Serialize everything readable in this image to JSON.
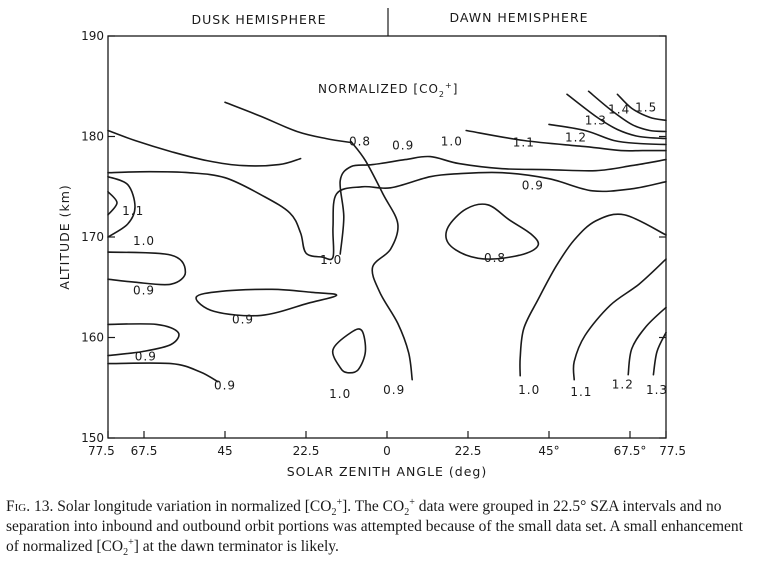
{
  "chart_data": {
    "type": "contour",
    "panel_left_title": "DUSK HEMISPHERE",
    "panel_right_title": "DAWN HEMISPHERE",
    "plot_title": "NORMALIZED [CO",
    "plot_title_sub": "2",
    "plot_title_sup": "+",
    "plot_title_end": "]",
    "xlabel": "SOLAR ZENITH ANGLE (deg)",
    "ylabel": "ALTITUDE (km)",
    "xlim": [
      -77.5,
      77.5
    ],
    "ylim": [
      150,
      190
    ],
    "x_ticks": [
      {
        "value": -77.5,
        "label": "77.5"
      },
      {
        "value": -67.5,
        "label": "67.5"
      },
      {
        "value": -45,
        "label": "45"
      },
      {
        "value": -22.5,
        "label": "22.5"
      },
      {
        "value": 0,
        "label": "0"
      },
      {
        "value": 22.5,
        "label": "22.5"
      },
      {
        "value": 45,
        "label": "45°"
      },
      {
        "value": 67.5,
        "label": "67.5°"
      },
      {
        "value": 77.5,
        "label": "77.5"
      }
    ],
    "y_ticks": [
      {
        "value": 150,
        "label": "150"
      },
      {
        "value": 160,
        "label": "160"
      },
      {
        "value": 170,
        "label": "170"
      },
      {
        "value": 180,
        "label": "180"
      },
      {
        "value": 190,
        "label": "190"
      }
    ],
    "contours": [
      {
        "level": "0.8",
        "closed": false,
        "points": [
          [
            -77.5,
            180.6
          ],
          [
            -70,
            179.6
          ],
          [
            -60,
            178.5
          ],
          [
            -50,
            177.6
          ],
          [
            -40,
            177.1
          ],
          [
            -30,
            177.2
          ],
          [
            -24,
            177.8
          ]
        ]
      },
      {
        "level": "0.8",
        "closed": false,
        "points": [
          [
            -45,
            183.4
          ],
          [
            -35,
            182.0
          ],
          [
            -25,
            180.5
          ],
          [
            -17,
            179.8
          ],
          [
            -10,
            179.4
          ]
        ]
      },
      {
        "level": "0.9",
        "closed": false,
        "points": [
          [
            -77.5,
            176.4
          ],
          [
            -66,
            176.5
          ],
          [
            -55,
            176.4
          ],
          [
            -45,
            175.9
          ],
          [
            -35,
            174.2
          ],
          [
            -27,
            172.4
          ],
          [
            -24,
            170.4
          ],
          [
            -22.5,
            168.4
          ],
          [
            -18,
            168.0
          ],
          [
            -15,
            168.0
          ],
          [
            -15,
            171.0
          ],
          [
            -14,
            174.3
          ],
          [
            -7,
            175.0
          ],
          [
            1,
            174.9
          ],
          [
            12,
            176.0
          ],
          [
            20,
            176.3
          ],
          [
            32,
            176.4
          ],
          [
            45,
            175.8
          ],
          [
            57,
            174.6
          ],
          [
            68,
            174.8
          ],
          [
            77.5,
            175.5
          ]
        ]
      },
      {
        "level": "1.0",
        "closed": false,
        "points": [
          [
            -13,
            168.3
          ],
          [
            -12,
            172.0
          ],
          [
            -13,
            175.6
          ],
          [
            -10,
            177.0
          ],
          [
            -4,
            177.2
          ],
          [
            5,
            177.7
          ],
          [
            12,
            178.0
          ],
          [
            20,
            177.3
          ],
          [
            32,
            176.8
          ],
          [
            45,
            176.7
          ],
          [
            58,
            176.6
          ],
          [
            68,
            177.1
          ],
          [
            77.5,
            177.7
          ]
        ]
      },
      {
        "level": "1.0",
        "closed": false,
        "points": [
          [
            -77.5,
            170.0
          ],
          [
            -72,
            171.3
          ],
          [
            -70,
            173.0
          ],
          [
            -72,
            175.2
          ],
          [
            -77.5,
            176.0
          ]
        ]
      },
      {
        "level": "1.1",
        "closed": false,
        "points": [
          [
            -77.5,
            172.2
          ],
          [
            -75,
            173.4
          ],
          [
            -77.5,
            174.5
          ]
        ]
      },
      {
        "level": "1.1",
        "closed": false,
        "points": [
          [
            22,
            180.6
          ],
          [
            38,
            179.6
          ],
          [
            55,
            179.0
          ],
          [
            65,
            178.6
          ],
          [
            71,
            178.6
          ],
          [
            77.5,
            178.6
          ]
        ]
      },
      {
        "level": "1.2",
        "closed": false,
        "points": [
          [
            45,
            181.2
          ],
          [
            55,
            180.6
          ],
          [
            63,
            179.6
          ],
          [
            70,
            179.3
          ],
          [
            77.5,
            179.2
          ]
        ]
      },
      {
        "level": "1.3",
        "closed": false,
        "points": [
          [
            50,
            184.2
          ],
          [
            58,
            182.0
          ],
          [
            64,
            180.7
          ],
          [
            70,
            180.0
          ],
          [
            77.5,
            179.8
          ]
        ]
      },
      {
        "level": "1.4",
        "closed": false,
        "points": [
          [
            56,
            184.5
          ],
          [
            62,
            182.7
          ],
          [
            68,
            181.2
          ],
          [
            73,
            180.6
          ],
          [
            77.5,
            180.5
          ]
        ]
      },
      {
        "level": "1.5",
        "closed": false,
        "points": [
          [
            64,
            184.2
          ],
          [
            68,
            182.8
          ],
          [
            73,
            181.9
          ],
          [
            77.5,
            181.6
          ]
        ]
      },
      {
        "level": "0.9",
        "closed": false,
        "points": [
          [
            -77.5,
            168.5
          ],
          [
            -60,
            168.2
          ],
          [
            -56,
            166.5
          ],
          [
            -60,
            165.3
          ],
          [
            -70,
            165.5
          ],
          [
            -77.5,
            165.8
          ]
        ]
      },
      {
        "level": "0.9",
        "closed": true,
        "points": [
          [
            -53,
            164.0
          ],
          [
            -46,
            164.6
          ],
          [
            -32,
            164.8
          ],
          [
            -21,
            164.5
          ],
          [
            -14,
            164.2
          ],
          [
            -22,
            163.4
          ],
          [
            -35,
            162.2
          ],
          [
            -48,
            162.6
          ]
        ]
      },
      {
        "level": "0.9",
        "closed": false,
        "points": [
          [
            -77.5,
            161.3
          ],
          [
            -64,
            161.3
          ],
          [
            -58,
            160.5
          ],
          [
            -60,
            159.3
          ],
          [
            -68,
            158.6
          ],
          [
            -77.5,
            158.2
          ]
        ]
      },
      {
        "level": "0.9",
        "closed": false,
        "points": [
          [
            -77.5,
            157.4
          ],
          [
            -60,
            157.4
          ],
          [
            -52,
            156.6
          ],
          [
            -47,
            155.6
          ]
        ]
      },
      {
        "level": "1.0",
        "closed": true,
        "points": [
          [
            -15,
            158.8
          ],
          [
            -10,
            160.5
          ],
          [
            -7,
            160.7
          ],
          [
            -6,
            158.6
          ],
          [
            -8,
            156.8
          ],
          [
            -11,
            156.5
          ],
          [
            -13,
            157.0
          ]
        ]
      },
      {
        "level": "0.9",
        "closed": false,
        "points": [
          [
            -10,
            179.5
          ],
          [
            -6,
            177.6
          ],
          [
            -1,
            174.2
          ],
          [
            3,
            171.3
          ],
          [
            1,
            168.8
          ],
          [
            -4,
            167.0
          ],
          [
            -2,
            164.5
          ],
          [
            3,
            161.4
          ],
          [
            6,
            158.5
          ],
          [
            7,
            155.8
          ]
        ]
      },
      {
        "level": "0.8",
        "closed": true,
        "points": [
          [
            17,
            171.0
          ],
          [
            22,
            172.8
          ],
          [
            28,
            173.2
          ],
          [
            34,
            171.7
          ],
          [
            40,
            170.3
          ],
          [
            42,
            169.2
          ],
          [
            38,
            168.3
          ],
          [
            29,
            167.8
          ],
          [
            22,
            168.2
          ],
          [
            17,
            169.4
          ]
        ]
      },
      {
        "level": "1.0",
        "closed": false,
        "points": [
          [
            77.5,
            170.2
          ],
          [
            66,
            172.2
          ],
          [
            58,
            171.6
          ],
          [
            52,
            169.7
          ],
          [
            47,
            167.1
          ],
          [
            42,
            163.8
          ],
          [
            38,
            160.9
          ],
          [
            37,
            158.0
          ],
          [
            37,
            156.2
          ]
        ]
      },
      {
        "level": "1.1",
        "closed": false,
        "points": [
          [
            77.5,
            167.8
          ],
          [
            70,
            165.3
          ],
          [
            62,
            163.2
          ],
          [
            55,
            160.2
          ],
          [
            52,
            157.6
          ],
          [
            52,
            155.8
          ]
        ]
      },
      {
        "level": "1.2",
        "closed": false,
        "points": [
          [
            77.5,
            163.0
          ],
          [
            72,
            161.1
          ],
          [
            68,
            158.9
          ],
          [
            67,
            156.3
          ]
        ]
      },
      {
        "level": "1.3",
        "closed": false,
        "points": [
          [
            77.5,
            160.5
          ],
          [
            75,
            158.6
          ],
          [
            74,
            156.3
          ]
        ]
      }
    ],
    "contour_labels": [
      {
        "text": "0.8",
        "x": -7.5,
        "y": 179.5
      },
      {
        "text": "0.9",
        "x": 4.5,
        "y": 179.1
      },
      {
        "text": "1.0",
        "x": 18,
        "y": 179.5
      },
      {
        "text": "1.1",
        "x": 38,
        "y": 179.4
      },
      {
        "text": "1.2",
        "x": 52.5,
        "y": 179.9
      },
      {
        "text": "1.3",
        "x": 58,
        "y": 181.6
      },
      {
        "text": "1.4",
        "x": 64.5,
        "y": 182.7
      },
      {
        "text": "1.5",
        "x": 72,
        "y": 182.9
      },
      {
        "text": "0.9",
        "x": 40.5,
        "y": 175.1
      },
      {
        "text": "1.1",
        "x": -70.5,
        "y": 172.6
      },
      {
        "text": "1.0",
        "x": -67.5,
        "y": 169.6
      },
      {
        "text": "1.0",
        "x": -15.5,
        "y": 167.7
      },
      {
        "text": "0.8",
        "x": 30,
        "y": 167.9
      },
      {
        "text": "0.9",
        "x": -67.5,
        "y": 164.7
      },
      {
        "text": "0.9",
        "x": -40,
        "y": 161.8
      },
      {
        "text": "0.9",
        "x": -67,
        "y": 158.1
      },
      {
        "text": "0.9",
        "x": -45,
        "y": 155.2
      },
      {
        "text": "1.0",
        "x": -13,
        "y": 154.4
      },
      {
        "text": "0.9",
        "x": 2,
        "y": 154.8
      },
      {
        "text": "1.0",
        "x": 39.5,
        "y": 154.8
      },
      {
        "text": "1.1",
        "x": 54,
        "y": 154.6
      },
      {
        "text": "1.2",
        "x": 65.5,
        "y": 155.3
      },
      {
        "text": "1.3",
        "x": 75,
        "y": 154.8
      }
    ]
  },
  "caption": {
    "fig_number": "Fig. 13.",
    "p1": " Solar longitude variation in normalized [CO",
    "p1_sub": "2",
    "p1_sup": "+",
    "p2": "]. The CO",
    "p2_sub": "2",
    "p2_sup": "+",
    "p3": " data were grouped in 22.5° SZA intervals and no separation into inbound and outbound orbit portions was attempted because of the small data set. A small enhancement of normalized [CO",
    "p3_sub": "2",
    "p3_sup": "+",
    "p4": "] at the dawn terminator is likely."
  }
}
